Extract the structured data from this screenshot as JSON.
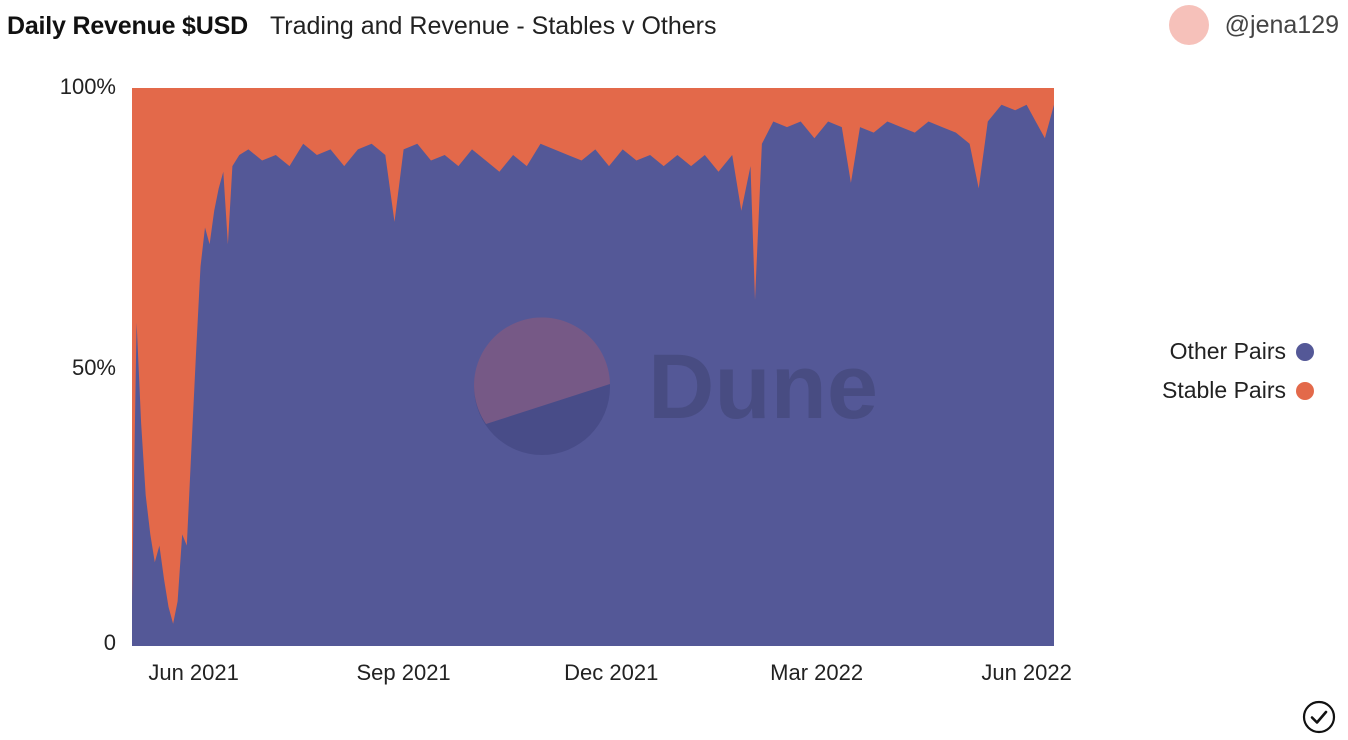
{
  "header": {
    "title": "Daily Revenue $USD",
    "subtitle": "Trading and Revenue - Stables v Others"
  },
  "author": {
    "name": "@jena129"
  },
  "watermark": {
    "text": "Dune"
  },
  "status_icon": "check-circle-icon",
  "colors": {
    "other": "#545897",
    "stable": "#e3694a",
    "avatar": "#f6c1ba"
  },
  "chart_data": {
    "type": "area",
    "stacked_percent": true,
    "title": "",
    "xlabel": "",
    "ylabel": "",
    "ylim": [
      0,
      100
    ],
    "yticks": [
      {
        "value": 0,
        "label": "0"
      },
      {
        "value": 50,
        "label": "50%"
      },
      {
        "value": 100,
        "label": "100%"
      }
    ],
    "x_start": "2021-05-05",
    "x_end": "2022-06-13",
    "xticks": [
      {
        "date": "2021-06-01",
        "label": "Jun 2021"
      },
      {
        "date": "2021-09-01",
        "label": "Sep 2021"
      },
      {
        "date": "2021-12-01",
        "label": "Dec 2021"
      },
      {
        "date": "2022-03-01",
        "label": "Mar 2022"
      },
      {
        "date": "2022-06-01",
        "label": "Jun 2022"
      }
    ],
    "legend_position": "right",
    "series": [
      {
        "name": "Other Pairs",
        "color": "#545897"
      },
      {
        "name": "Stable Pairs",
        "color": "#e3694a"
      }
    ],
    "other_pairs_share": [
      [
        "2021-05-05",
        8
      ],
      [
        "2021-05-07",
        58
      ],
      [
        "2021-05-09",
        40
      ],
      [
        "2021-05-11",
        27
      ],
      [
        "2021-05-13",
        20
      ],
      [
        "2021-05-15",
        15
      ],
      [
        "2021-05-17",
        18
      ],
      [
        "2021-05-19",
        12
      ],
      [
        "2021-05-21",
        7
      ],
      [
        "2021-05-23",
        4
      ],
      [
        "2021-05-25",
        8
      ],
      [
        "2021-05-27",
        20
      ],
      [
        "2021-05-29",
        18
      ],
      [
        "2021-05-31",
        35
      ],
      [
        "2021-06-02",
        52
      ],
      [
        "2021-06-04",
        68
      ],
      [
        "2021-06-06",
        75
      ],
      [
        "2021-06-08",
        72
      ],
      [
        "2021-06-10",
        78
      ],
      [
        "2021-06-12",
        82
      ],
      [
        "2021-06-14",
        85
      ],
      [
        "2021-06-16",
        72
      ],
      [
        "2021-06-18",
        86
      ],
      [
        "2021-06-21",
        88
      ],
      [
        "2021-06-25",
        89
      ],
      [
        "2021-07-01",
        87
      ],
      [
        "2021-07-07",
        88
      ],
      [
        "2021-07-13",
        86
      ],
      [
        "2021-07-19",
        90
      ],
      [
        "2021-07-25",
        88
      ],
      [
        "2021-07-31",
        89
      ],
      [
        "2021-08-06",
        86
      ],
      [
        "2021-08-12",
        89
      ],
      [
        "2021-08-18",
        90
      ],
      [
        "2021-08-24",
        88
      ],
      [
        "2021-08-28",
        76
      ],
      [
        "2021-09-01",
        89
      ],
      [
        "2021-09-07",
        90
      ],
      [
        "2021-09-13",
        87
      ],
      [
        "2021-09-19",
        88
      ],
      [
        "2021-09-25",
        86
      ],
      [
        "2021-10-01",
        89
      ],
      [
        "2021-10-07",
        87
      ],
      [
        "2021-10-13",
        85
      ],
      [
        "2021-10-19",
        88
      ],
      [
        "2021-10-25",
        86
      ],
      [
        "2021-10-31",
        90
      ],
      [
        "2021-11-06",
        89
      ],
      [
        "2021-11-12",
        88
      ],
      [
        "2021-11-18",
        87
      ],
      [
        "2021-11-24",
        89
      ],
      [
        "2021-11-30",
        86
      ],
      [
        "2021-12-06",
        89
      ],
      [
        "2021-12-12",
        87
      ],
      [
        "2021-12-18",
        88
      ],
      [
        "2021-12-24",
        86
      ],
      [
        "2021-12-30",
        88
      ],
      [
        "2022-01-05",
        86
      ],
      [
        "2022-01-11",
        88
      ],
      [
        "2022-01-17",
        85
      ],
      [
        "2022-01-23",
        88
      ],
      [
        "2022-01-27",
        78
      ],
      [
        "2022-01-31",
        86
      ],
      [
        "2022-02-02",
        62
      ],
      [
        "2022-02-05",
        90
      ],
      [
        "2022-02-10",
        94
      ],
      [
        "2022-02-16",
        93
      ],
      [
        "2022-02-22",
        94
      ],
      [
        "2022-02-28",
        91
      ],
      [
        "2022-03-06",
        94
      ],
      [
        "2022-03-12",
        93
      ],
      [
        "2022-03-16",
        83
      ],
      [
        "2022-03-20",
        93
      ],
      [
        "2022-03-26",
        92
      ],
      [
        "2022-04-01",
        94
      ],
      [
        "2022-04-07",
        93
      ],
      [
        "2022-04-13",
        92
      ],
      [
        "2022-04-19",
        94
      ],
      [
        "2022-04-25",
        93
      ],
      [
        "2022-05-01",
        92
      ],
      [
        "2022-05-07",
        90
      ],
      [
        "2022-05-11",
        82
      ],
      [
        "2022-05-15",
        94
      ],
      [
        "2022-05-21",
        97
      ],
      [
        "2022-05-27",
        96
      ],
      [
        "2022-06-01",
        97
      ],
      [
        "2022-06-05",
        94
      ],
      [
        "2022-06-09",
        91
      ],
      [
        "2022-06-13",
        97
      ]
    ]
  }
}
